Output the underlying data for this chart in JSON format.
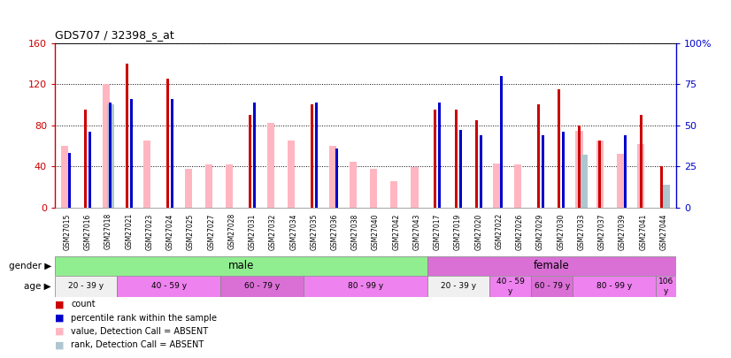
{
  "title": "GDS707 / 32398_s_at",
  "samples": [
    "GSM27015",
    "GSM27016",
    "GSM27018",
    "GSM27021",
    "GSM27023",
    "GSM27024",
    "GSM27025",
    "GSM27027",
    "GSM27028",
    "GSM27031",
    "GSM27032",
    "GSM27034",
    "GSM27035",
    "GSM27036",
    "GSM27038",
    "GSM27040",
    "GSM27042",
    "GSM27043",
    "GSM27017",
    "GSM27019",
    "GSM27020",
    "GSM27022",
    "GSM27026",
    "GSM27029",
    "GSM27030",
    "GSM27033",
    "GSM27037",
    "GSM27039",
    "GSM27041",
    "GSM27044"
  ],
  "count": [
    0,
    95,
    0,
    140,
    0,
    125,
    0,
    0,
    0,
    90,
    0,
    0,
    100,
    0,
    0,
    0,
    0,
    0,
    95,
    95,
    85,
    0,
    0,
    100,
    115,
    80,
    65,
    0,
    90,
    40
  ],
  "rank": [
    33,
    46,
    64,
    66,
    0,
    66,
    0,
    0,
    0,
    64,
    0,
    0,
    64,
    36,
    0,
    0,
    0,
    0,
    64,
    47,
    44,
    80,
    0,
    44,
    46,
    0,
    0,
    44,
    0,
    0
  ],
  "absent_value": [
    60,
    0,
    120,
    0,
    65,
    0,
    38,
    42,
    42,
    0,
    82,
    65,
    0,
    60,
    45,
    38,
    26,
    39,
    0,
    0,
    0,
    43,
    42,
    0,
    0,
    75,
    65,
    52,
    62,
    0
  ],
  "absent_rank": [
    0,
    0,
    63,
    0,
    0,
    0,
    0,
    0,
    0,
    0,
    0,
    0,
    0,
    0,
    0,
    0,
    0,
    0,
    0,
    0,
    0,
    0,
    0,
    0,
    0,
    32,
    0,
    0,
    0,
    14
  ],
  "gender_groups": [
    {
      "label": "male",
      "start": 0,
      "end": 18,
      "color": "#90ee90"
    },
    {
      "label": "female",
      "start": 18,
      "end": 30,
      "color": "#da70d6"
    }
  ],
  "age_groups": [
    {
      "label": "20 - 39 y",
      "start": 0,
      "end": 3,
      "color": "#f0f0f0"
    },
    {
      "label": "40 - 59 y",
      "start": 3,
      "end": 8,
      "color": "#ee82ee"
    },
    {
      "label": "60 - 79 y",
      "start": 8,
      "end": 12,
      "color": "#da70d6"
    },
    {
      "label": "80 - 99 y",
      "start": 12,
      "end": 18,
      "color": "#ee82ee"
    },
    {
      "label": "20 - 39 y",
      "start": 18,
      "end": 21,
      "color": "#f0f0f0"
    },
    {
      "label": "40 - 59\ny",
      "start": 21,
      "end": 23,
      "color": "#ee82ee"
    },
    {
      "label": "60 - 79 y",
      "start": 23,
      "end": 25,
      "color": "#da70d6"
    },
    {
      "label": "80 - 99 y",
      "start": 25,
      "end": 29,
      "color": "#ee82ee"
    },
    {
      "label": "106\ny",
      "start": 29,
      "end": 30,
      "color": "#ee82ee"
    }
  ],
  "ylim_left": [
    0,
    160
  ],
  "ylim_right": [
    0,
    100
  ],
  "yticks_left": [
    0,
    40,
    80,
    120,
    160
  ],
  "yticks_right": [
    0,
    25,
    50,
    75,
    100
  ],
  "count_color": "#cc0000",
  "rank_color": "#0000cc",
  "absent_value_color": "#ffb6c1",
  "absent_rank_color": "#aec6cf",
  "legend_items": [
    {
      "label": "count",
      "color": "#cc0000"
    },
    {
      "label": "percentile rank within the sample",
      "color": "#0000cc"
    },
    {
      "label": "value, Detection Call = ABSENT",
      "color": "#ffb6c1"
    },
    {
      "label": "rank, Detection Call = ABSENT",
      "color": "#aec6cf"
    }
  ]
}
